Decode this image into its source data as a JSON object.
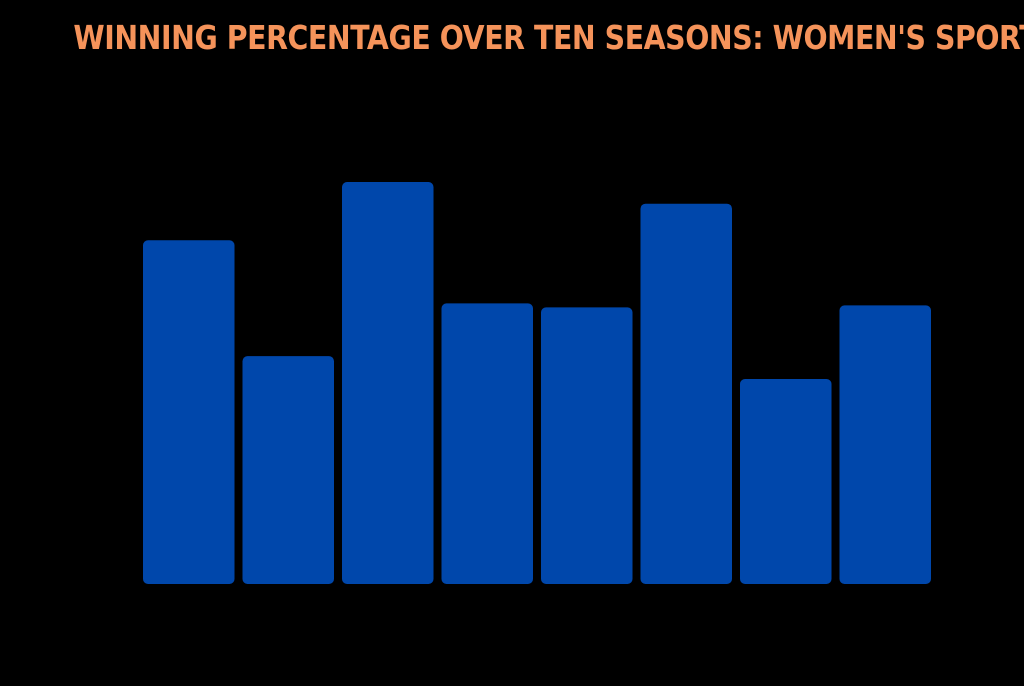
{
  "chart_data": {
    "type": "bar",
    "title": "WINNING PERCENTAGE OVER TEN SEASONS: WOMEN'S SPORTS",
    "xlabel": "",
    "ylabel": "",
    "categories": [
      "",
      "",
      "",
      "",
      "",
      "",
      "",
      ""
    ],
    "values": [
      85.5,
      56.7,
      100,
      69.8,
      68.8,
      94.6,
      51.0,
      69.3
    ],
    "ylim": [
      0,
      100
    ],
    "grid": false,
    "legend": "none",
    "colors": {
      "background": "#000000",
      "bar": "#0047ab",
      "title": "#f5935a"
    }
  }
}
